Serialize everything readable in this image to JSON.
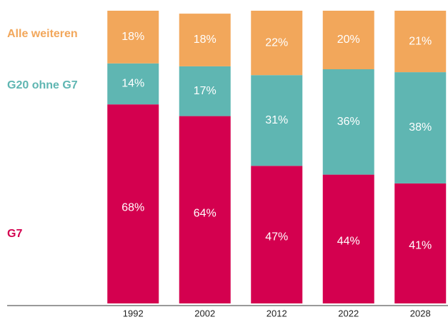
{
  "chart_data": {
    "type": "stacked_bar",
    "categories": [
      "1992",
      "2002",
      "2012",
      "2022",
      "2028"
    ],
    "ylim": [
      0,
      100
    ],
    "series": [
      {
        "name": "G7",
        "color": "#d4004f",
        "values": [
          68,
          64,
          47,
          44,
          41
        ],
        "value_labels": [
          "68%",
          "64%",
          "47%",
          "44%",
          "41%"
        ]
      },
      {
        "name": "G20 ohne G7",
        "color": "#5fb6b2",
        "values": [
          14,
          17,
          31,
          36,
          38
        ],
        "value_labels": [
          "14%",
          "17%",
          "31%",
          "36%",
          "38%"
        ]
      },
      {
        "name": "Alle weiteren",
        "color": "#f2a75b",
        "values": [
          18,
          18,
          22,
          20,
          21
        ],
        "value_labels": [
          "18%",
          "18%",
          "22%",
          "20%",
          "21%"
        ]
      }
    ]
  }
}
